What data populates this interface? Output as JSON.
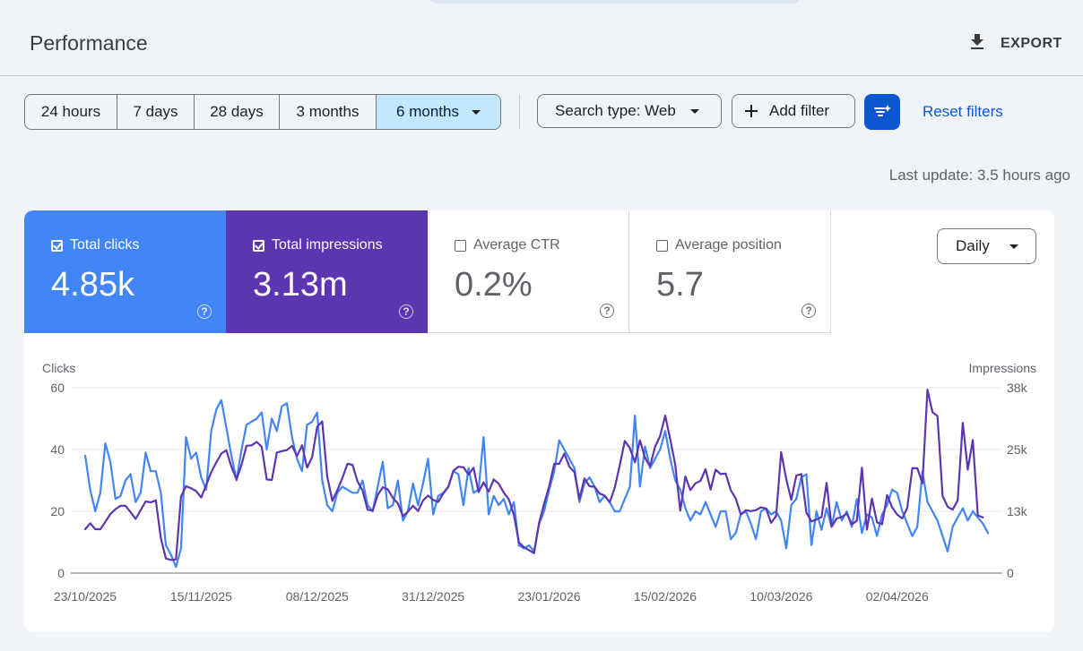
{
  "header": {
    "title": "Performance",
    "export_label": "EXPORT"
  },
  "date_range": {
    "options": [
      "24 hours",
      "7 days",
      "28 days",
      "3 months",
      "6 months"
    ],
    "selected": "6 months"
  },
  "filters": {
    "search_type": "Search type: Web",
    "add_filter": "Add filter",
    "reset": "Reset filters"
  },
  "last_update": "Last update: 3.5 hours ago",
  "metrics": {
    "clicks": {
      "label": "Total clicks",
      "value": "4.85k",
      "checked": true,
      "color": "#4285f4"
    },
    "impressions": {
      "label": "Total impressions",
      "value": "3.13m",
      "checked": true,
      "color": "#5e35b1"
    },
    "ctr": {
      "label": "Average CTR",
      "value": "0.2%",
      "checked": false
    },
    "position": {
      "label": "Average position",
      "value": "5.7",
      "checked": false
    }
  },
  "granularity": "Daily",
  "chart_data": {
    "type": "line",
    "ylabel_left": "Clicks",
    "ylabel_right": "Impressions",
    "y_left_ticks": [
      "0",
      "20",
      "40",
      "60"
    ],
    "y_right_ticks": [
      "0",
      "13k",
      "25k",
      "38k"
    ],
    "ylim_left": [
      0,
      60
    ],
    "ylim_right": [
      0,
      38000
    ],
    "x_tick_labels": [
      "23/10/2025",
      "15/11/2025",
      "08/12/2025",
      "31/12/2025",
      "23/01/2026",
      "15/02/2026",
      "10/03/2026",
      "02/04/2026"
    ],
    "x_tick_index": [
      0,
      23,
      46,
      69,
      92,
      115,
      138,
      161
    ],
    "grid": true,
    "series": [
      {
        "name": "Clicks",
        "axis": "left",
        "color": "#4285f4",
        "values": [
          38,
          27,
          20,
          26,
          42,
          36,
          24,
          25,
          30,
          32,
          23,
          26,
          39,
          33,
          33,
          26,
          9,
          6,
          2,
          8,
          44,
          37,
          39,
          31,
          27,
          46,
          53,
          56,
          47,
          38,
          30,
          40,
          48,
          49,
          50,
          52,
          40,
          50,
          46,
          54,
          55,
          44,
          37,
          33,
          48,
          49,
          52,
          30,
          22,
          20,
          26,
          28,
          27,
          26,
          26,
          30,
          22,
          20,
          28,
          36,
          21,
          22,
          30,
          17,
          20,
          29,
          22,
          29,
          37,
          19,
          25,
          26,
          28,
          33,
          32,
          22,
          34,
          26,
          27,
          44,
          19,
          25,
          22,
          24,
          19,
          23,
          9,
          8,
          9,
          7,
          16,
          20,
          27,
          33,
          43,
          40,
          37,
          34,
          23,
          29,
          31,
          28,
          23,
          25,
          23,
          20,
          20,
          24,
          28,
          51,
          28,
          41,
          34,
          37,
          40,
          46,
          37,
          30,
          27,
          21,
          17,
          20,
          19,
          23,
          19,
          15,
          20,
          20,
          11,
          13,
          19,
          20,
          16,
          11,
          20,
          21,
          19,
          20,
          17,
          8,
          22,
          24,
          31,
          32,
          9,
          20,
          14,
          21,
          15,
          23,
          17,
          20,
          15,
          24,
          13,
          19,
          18,
          12,
          19,
          22,
          27,
          26,
          20,
          16,
          12,
          15,
          33,
          23,
          20,
          17,
          12,
          7,
          15,
          18,
          21,
          17,
          20,
          18,
          16,
          13
        ]
      },
      {
        "name": "Impressions",
        "axis": "right",
        "color": "#5e35b1",
        "values": [
          9000,
          10200,
          9000,
          9000,
          10500,
          12100,
          13100,
          13800,
          13800,
          12500,
          11100,
          12900,
          14700,
          14500,
          14900,
          7200,
          3000,
          2700,
          2800,
          15700,
          17800,
          17400,
          16800,
          15500,
          18000,
          20700,
          22700,
          24500,
          25200,
          21800,
          19200,
          22200,
          26100,
          26200,
          26900,
          25900,
          19200,
          19100,
          24700,
          25000,
          25200,
          26100,
          24000,
          26200,
          21600,
          23800,
          30000,
          31100,
          19800,
          14800,
          17000,
          19500,
          22400,
          22200,
          18800,
          16900,
          13000,
          12800,
          16000,
          17600,
          17200,
          15400,
          14300,
          11700,
          12600,
          13800,
          12700,
          14900,
          15900,
          15000,
          14600,
          16300,
          17700,
          21000,
          21800,
          21700,
          20200,
          21600,
          16600,
          18600,
          16700,
          19200,
          18300,
          16500,
          15100,
          11900,
          6300,
          5300,
          4700,
          4100,
          10300,
          14200,
          17800,
          22400,
          22400,
          24500,
          21800,
          20700,
          15200,
          19400,
          17800,
          17700,
          16300,
          15900,
          14500,
          17500,
          22100,
          27100,
          25600,
          22700,
          27200,
          23600,
          21900,
          25900,
          28100,
          32300,
          27400,
          22200,
          12800,
          19800,
          17000,
          18400,
          18900,
          21300,
          17100,
          21200,
          20300,
          20400,
          17000,
          15300,
          12000,
          12900,
          12700,
          12900,
          13500,
          13200,
          10300,
          11700,
          24800,
          19300,
          15000,
          20000,
          20300,
          12400,
          10600,
          11000,
          11500,
          18500,
          9500,
          11200,
          11500,
          12200,
          10000,
          10700,
          21600,
          8900,
          15300,
          10400,
          10000,
          16000,
          13500,
          12000,
          11200,
          13400,
          21500,
          21500,
          18400,
          37600,
          33000,
          32200,
          15800,
          13600,
          13000,
          14900,
          30800,
          21200,
          27300,
          11800,
          11400
        ]
      }
    ]
  },
  "icons": {
    "export": "download-icon",
    "caret": "chevron-down-icon",
    "add": "plus-icon",
    "filter_settings": "filter-sparkle-icon",
    "help": "help-circle-icon"
  }
}
